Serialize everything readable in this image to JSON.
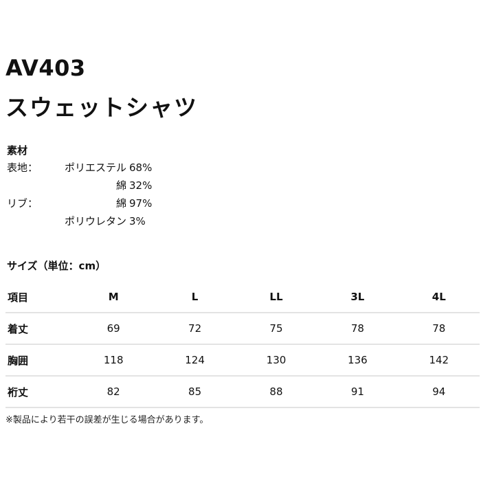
{
  "product": {
    "code": "AV403",
    "name": "スウェットシャツ"
  },
  "materials": {
    "heading": "素材",
    "rows": [
      {
        "label": "表地：",
        "material": "ポリエステル",
        "percent": "68%"
      },
      {
        "label": "",
        "material": "綿",
        "percent": "32%"
      },
      {
        "label": "リブ：",
        "material": "綿",
        "percent": "97%"
      },
      {
        "label": "",
        "material": "ポリウレタン",
        "percent": "3%"
      }
    ]
  },
  "sizes": {
    "heading": "サイズ（単位：cm）",
    "columns": [
      "項目",
      "M",
      "L",
      "LL",
      "3L",
      "4L"
    ],
    "rows": [
      {
        "label": "着丈",
        "values": [
          "69",
          "72",
          "75",
          "78",
          "78"
        ]
      },
      {
        "label": "胸囲",
        "values": [
          "118",
          "124",
          "130",
          "136",
          "142"
        ]
      },
      {
        "label": "裄丈",
        "values": [
          "82",
          "85",
          "88",
          "91",
          "94"
        ]
      }
    ]
  },
  "note": "※製品により若干の誤差が生じる場合があります。"
}
